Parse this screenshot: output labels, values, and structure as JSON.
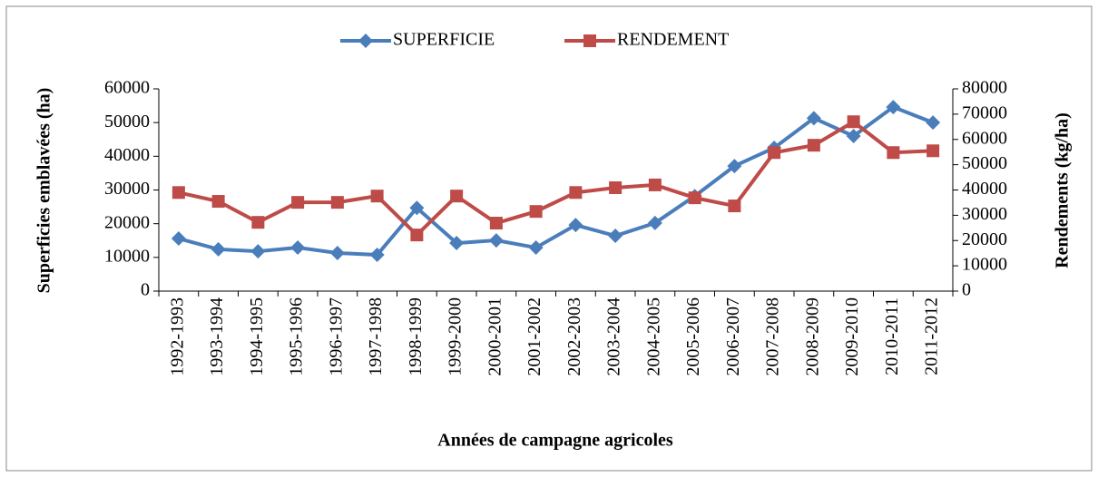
{
  "chart_data": {
    "type": "line",
    "x_label": "Années de campagne agricoles",
    "y_label": "Superficies emblavées (ha)",
    "y2_label": "Rendements (kg/ha)",
    "categories": [
      "1992-1993",
      "1993-1994",
      "1994-1995",
      "1995-1996",
      "1996-1997",
      "1997-1998",
      "1998-1999",
      "1999-2000",
      "2000-2001",
      "2001-2002",
      "2002-2003",
      "2003-2004",
      "2004-2005",
      "2005-2006",
      "2006-2007",
      "2007-2008",
      "2008-2009",
      "2009-2010",
      "2010-2011",
      "2011-2012"
    ],
    "series": [
      {
        "name": "SUPERFICIE",
        "color": "#4a7ebb",
        "marker": "diamond",
        "axis": "y",
        "values": [
          15600,
          12400,
          11800,
          12900,
          11300,
          10750,
          24700,
          14250,
          15050,
          12900,
          19600,
          16400,
          20200,
          28200,
          37100,
          42500,
          51300,
          46000,
          54600,
          50000
        ]
      },
      {
        "name": "RENDEMENT",
        "color": "#be4b48",
        "marker": "square",
        "axis": "y2",
        "values": [
          39000,
          35500,
          27200,
          35100,
          35100,
          37600,
          22200,
          37600,
          26900,
          31500,
          39000,
          40900,
          42000,
          36900,
          33700,
          54800,
          57700,
          67000,
          54800,
          55500
        ]
      }
    ],
    "ylim": [
      0,
      60000
    ],
    "yticks": [
      0,
      10000,
      20000,
      30000,
      40000,
      50000,
      60000
    ],
    "y2lim": [
      0,
      80000
    ],
    "y2ticks": [
      0,
      10000,
      20000,
      30000,
      40000,
      50000,
      60000,
      70000,
      80000
    ],
    "legend": "top"
  }
}
